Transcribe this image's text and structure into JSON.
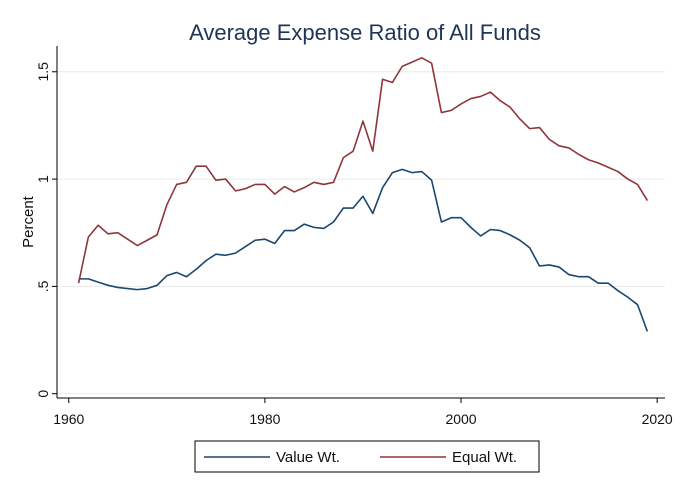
{
  "chart_data": {
    "type": "line",
    "title": "Average Expense Ratio of All Funds",
    "xlabel": "",
    "ylabel": "Percent",
    "xlim": [
      1958.8,
      2020.8
    ],
    "ylim": [
      -0.02,
      1.62
    ],
    "x_ticks": [
      1960,
      1980,
      2000,
      2020
    ],
    "y_ticks": [
      0,
      0.5,
      1,
      1.5
    ],
    "y_tick_labels": [
      "0",
      ".5",
      "1",
      "1.5"
    ],
    "grid": true,
    "legend": "bottom",
    "series": [
      {
        "name": "Value Wt.",
        "color": "#1a476f",
        "x": [
          1961,
          1962,
          1963,
          1964,
          1965,
          1966,
          1967,
          1968,
          1969,
          1970,
          1971,
          1972,
          1973,
          1974,
          1975,
          1976,
          1977,
          1978,
          1979,
          1980,
          1981,
          1982,
          1983,
          1984,
          1985,
          1986,
          1987,
          1988,
          1989,
          1990,
          1991,
          1992,
          1993,
          1994,
          1995,
          1996,
          1997,
          1998,
          1999,
          2000,
          2001,
          2002,
          2003,
          2004,
          2005,
          2006,
          2007,
          2008,
          2009,
          2010,
          2011,
          2012,
          2013,
          2014,
          2015,
          2016,
          2017,
          2018,
          2019
        ],
        "values": [
          0.535,
          0.535,
          0.52,
          0.505,
          0.495,
          0.49,
          0.485,
          0.49,
          0.505,
          0.55,
          0.565,
          0.545,
          0.58,
          0.62,
          0.65,
          0.645,
          0.655,
          0.685,
          0.715,
          0.72,
          0.7,
          0.76,
          0.76,
          0.79,
          0.775,
          0.77,
          0.8,
          0.865,
          0.865,
          0.92,
          0.84,
          0.96,
          1.03,
          1.045,
          1.03,
          1.035,
          0.995,
          0.8,
          0.82,
          0.82,
          0.775,
          0.735,
          0.765,
          0.76,
          0.74,
          0.715,
          0.68,
          0.595,
          0.6,
          0.59,
          0.555,
          0.545,
          0.545,
          0.515,
          0.515,
          0.48,
          0.45,
          0.415,
          0.29
        ]
      },
      {
        "name": "Equal Wt.",
        "color": "#90353b",
        "x": [
          1961,
          1962,
          1963,
          1964,
          1965,
          1966,
          1967,
          1968,
          1969,
          1970,
          1971,
          1972,
          1973,
          1974,
          1975,
          1976,
          1977,
          1978,
          1979,
          1980,
          1981,
          1982,
          1983,
          1984,
          1985,
          1986,
          1987,
          1988,
          1989,
          1990,
          1991,
          1992,
          1993,
          1994,
          1995,
          1996,
          1997,
          1998,
          1999,
          2000,
          2001,
          2002,
          2003,
          2004,
          2005,
          2006,
          2007,
          2008,
          2009,
          2010,
          2011,
          2012,
          2013,
          2014,
          2015,
          2016,
          2017,
          2018,
          2019
        ],
        "values": [
          0.515,
          0.73,
          0.785,
          0.745,
          0.75,
          0.72,
          0.69,
          0.715,
          0.74,
          0.88,
          0.975,
          0.985,
          1.06,
          1.06,
          0.995,
          1.0,
          0.945,
          0.955,
          0.975,
          0.975,
          0.93,
          0.965,
          0.94,
          0.96,
          0.985,
          0.975,
          0.985,
          1.1,
          1.13,
          1.27,
          1.13,
          1.465,
          1.45,
          1.525,
          1.545,
          1.565,
          1.54,
          1.31,
          1.32,
          1.35,
          1.375,
          1.385,
          1.405,
          1.365,
          1.335,
          1.28,
          1.235,
          1.24,
          1.185,
          1.155,
          1.145,
          1.115,
          1.09,
          1.075,
          1.055,
          1.035,
          1.0,
          0.975,
          0.9
        ]
      }
    ]
  }
}
